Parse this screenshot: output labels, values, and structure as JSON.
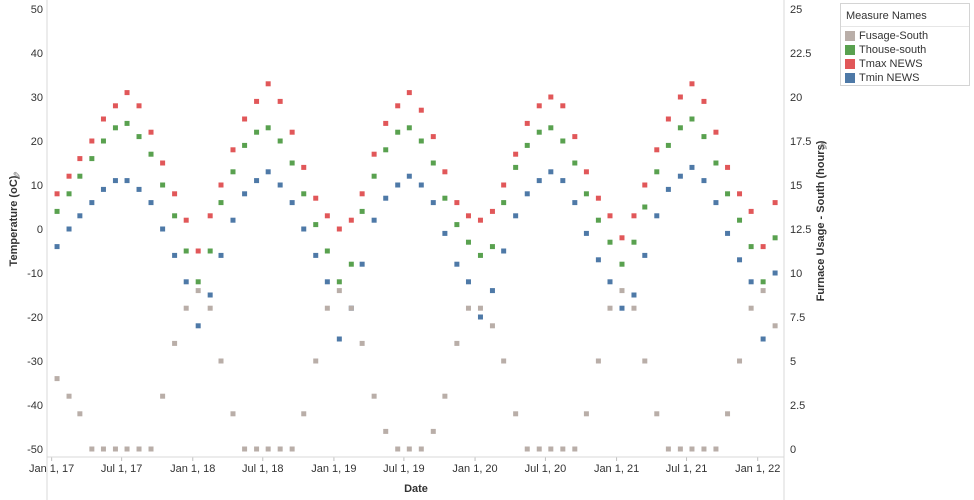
{
  "legend": {
    "title": "Measure Names",
    "items": [
      {
        "label": "Fusage-South",
        "color": "#b9aea8"
      },
      {
        "label": "Thouse-south",
        "color": "#59a14f"
      },
      {
        "label": "Tmax NEWS",
        "color": "#e15759"
      },
      {
        "label": "Tmin NEWS",
        "color": "#4e79a7"
      }
    ]
  },
  "chart_data": {
    "type": "scatter",
    "xlabel": "Date",
    "ylabel_left": "Temperature (oC)",
    "ylabel_right": "Furnace Usage - South (hours)",
    "x_range": [
      "2016-12-20",
      "2022-03-10"
    ],
    "x_ticks": [
      {
        "label": "Jan 1, 17",
        "date": "2017-01-01"
      },
      {
        "label": "Jul 1, 17",
        "date": "2017-07-01"
      },
      {
        "label": "Jan 1, 18",
        "date": "2018-01-01"
      },
      {
        "label": "Jul 1, 18",
        "date": "2018-07-01"
      },
      {
        "label": "Jan 1, 19",
        "date": "2019-01-01"
      },
      {
        "label": "Jul 1, 19",
        "date": "2019-07-01"
      },
      {
        "label": "Jan 1, 20",
        "date": "2020-01-01"
      },
      {
        "label": "Jul 1, 20",
        "date": "2020-07-01"
      },
      {
        "label": "Jan 1, 21",
        "date": "2021-01-01"
      },
      {
        "label": "Jul 1, 21",
        "date": "2021-07-01"
      },
      {
        "label": "Jan 1, 22",
        "date": "2022-01-01"
      }
    ],
    "y_left": {
      "range": [
        -50,
        50
      ],
      "ticks": [
        50,
        40,
        30,
        20,
        10,
        0,
        -10,
        -20,
        -30,
        -40,
        -50
      ]
    },
    "y_right": {
      "range": [
        0,
        25
      ],
      "ticks": [
        "25",
        "22.5",
        "20",
        "17.5",
        "15",
        "12.5",
        "10",
        "7.5",
        "5",
        "2.5",
        "0"
      ]
    },
    "grid": false,
    "legend_position": "top-right",
    "series": [
      {
        "name": "Tmax NEWS",
        "axis": "left",
        "points": [
          [
            "2017-01-15",
            8
          ],
          [
            "2017-02-15",
            12
          ],
          [
            "2017-03-15",
            16
          ],
          [
            "2017-04-15",
            20
          ],
          [
            "2017-05-15",
            25
          ],
          [
            "2017-06-15",
            28
          ],
          [
            "2017-07-15",
            31
          ],
          [
            "2017-08-15",
            28
          ],
          [
            "2017-09-15",
            22
          ],
          [
            "2017-10-15",
            15
          ],
          [
            "2017-11-15",
            8
          ],
          [
            "2017-12-15",
            2
          ],
          [
            "2018-01-15",
            -5
          ],
          [
            "2018-02-15",
            3
          ],
          [
            "2018-03-15",
            10
          ],
          [
            "2018-04-15",
            18
          ],
          [
            "2018-05-15",
            25
          ],
          [
            "2018-06-15",
            29
          ],
          [
            "2018-07-15",
            33
          ],
          [
            "2018-08-15",
            29
          ],
          [
            "2018-09-15",
            22
          ],
          [
            "2018-10-15",
            14
          ],
          [
            "2018-11-15",
            7
          ],
          [
            "2018-12-15",
            3
          ],
          [
            "2019-01-15",
            0
          ],
          [
            "2019-02-15",
            2
          ],
          [
            "2019-03-15",
            8
          ],
          [
            "2019-04-15",
            17
          ],
          [
            "2019-05-15",
            24
          ],
          [
            "2019-06-15",
            28
          ],
          [
            "2019-07-15",
            31
          ],
          [
            "2019-08-15",
            27
          ],
          [
            "2019-09-15",
            21
          ],
          [
            "2019-10-15",
            13
          ],
          [
            "2019-11-15",
            6
          ],
          [
            "2019-12-15",
            3
          ],
          [
            "2020-01-15",
            2
          ],
          [
            "2020-02-15",
            4
          ],
          [
            "2020-03-15",
            10
          ],
          [
            "2020-04-15",
            17
          ],
          [
            "2020-05-15",
            24
          ],
          [
            "2020-06-15",
            28
          ],
          [
            "2020-07-15",
            30
          ],
          [
            "2020-08-15",
            28
          ],
          [
            "2020-09-15",
            21
          ],
          [
            "2020-10-15",
            13
          ],
          [
            "2020-11-15",
            7
          ],
          [
            "2020-12-15",
            3
          ],
          [
            "2021-01-15",
            -2
          ],
          [
            "2021-02-15",
            3
          ],
          [
            "2021-03-15",
            10
          ],
          [
            "2021-04-15",
            18
          ],
          [
            "2021-05-15",
            25
          ],
          [
            "2021-06-15",
            30
          ],
          [
            "2021-07-15",
            33
          ],
          [
            "2021-08-15",
            29
          ],
          [
            "2021-09-15",
            22
          ],
          [
            "2021-10-15",
            14
          ],
          [
            "2021-11-15",
            8
          ],
          [
            "2021-12-15",
            4
          ],
          [
            "2022-01-15",
            -4
          ],
          [
            "2022-02-15",
            6
          ]
        ]
      },
      {
        "name": "Thouse-south",
        "axis": "left",
        "points": [
          [
            "2017-01-15",
            4
          ],
          [
            "2017-02-15",
            8
          ],
          [
            "2017-03-15",
            12
          ],
          [
            "2017-04-15",
            16
          ],
          [
            "2017-05-15",
            20
          ],
          [
            "2017-06-15",
            23
          ],
          [
            "2017-07-15",
            24
          ],
          [
            "2017-08-15",
            21
          ],
          [
            "2017-09-15",
            17
          ],
          [
            "2017-10-15",
            10
          ],
          [
            "2017-11-15",
            3
          ],
          [
            "2017-12-15",
            -5
          ],
          [
            "2018-01-15",
            -12
          ],
          [
            "2018-02-15",
            -5
          ],
          [
            "2018-03-15",
            6
          ],
          [
            "2018-04-15",
            13
          ],
          [
            "2018-05-15",
            19
          ],
          [
            "2018-06-15",
            22
          ],
          [
            "2018-07-15",
            23
          ],
          [
            "2018-08-15",
            20
          ],
          [
            "2018-09-15",
            15
          ],
          [
            "2018-10-15",
            8
          ],
          [
            "2018-11-15",
            1
          ],
          [
            "2018-12-15",
            -5
          ],
          [
            "2019-01-15",
            -12
          ],
          [
            "2019-02-15",
            -8
          ],
          [
            "2019-03-15",
            4
          ],
          [
            "2019-04-15",
            12
          ],
          [
            "2019-05-15",
            18
          ],
          [
            "2019-06-15",
            22
          ],
          [
            "2019-07-15",
            23
          ],
          [
            "2019-08-15",
            20
          ],
          [
            "2019-09-15",
            15
          ],
          [
            "2019-10-15",
            7
          ],
          [
            "2019-11-15",
            1
          ],
          [
            "2019-12-15",
            -3
          ],
          [
            "2020-01-15",
            -6
          ],
          [
            "2020-02-15",
            -4
          ],
          [
            "2020-03-15",
            6
          ],
          [
            "2020-04-15",
            14
          ],
          [
            "2020-05-15",
            19
          ],
          [
            "2020-06-15",
            22
          ],
          [
            "2020-07-15",
            23
          ],
          [
            "2020-08-15",
            20
          ],
          [
            "2020-09-15",
            15
          ],
          [
            "2020-10-15",
            8
          ],
          [
            "2020-11-15",
            2
          ],
          [
            "2020-12-15",
            -3
          ],
          [
            "2021-01-15",
            -8
          ],
          [
            "2021-02-15",
            -3
          ],
          [
            "2021-03-15",
            5
          ],
          [
            "2021-04-15",
            13
          ],
          [
            "2021-05-15",
            19
          ],
          [
            "2021-06-15",
            23
          ],
          [
            "2021-07-15",
            25
          ],
          [
            "2021-08-15",
            21
          ],
          [
            "2021-09-15",
            15
          ],
          [
            "2021-10-15",
            8
          ],
          [
            "2021-11-15",
            2
          ],
          [
            "2021-12-15",
            -4
          ],
          [
            "2022-01-15",
            -12
          ],
          [
            "2022-02-15",
            -2
          ]
        ]
      },
      {
        "name": "Tmin NEWS",
        "axis": "left",
        "points": [
          [
            "2017-01-15",
            -4
          ],
          [
            "2017-02-15",
            0
          ],
          [
            "2017-03-15",
            3
          ],
          [
            "2017-04-15",
            6
          ],
          [
            "2017-05-15",
            9
          ],
          [
            "2017-06-15",
            11
          ],
          [
            "2017-07-15",
            11
          ],
          [
            "2017-08-15",
            9
          ],
          [
            "2017-09-15",
            6
          ],
          [
            "2017-10-15",
            0
          ],
          [
            "2017-11-15",
            -6
          ],
          [
            "2017-12-15",
            -12
          ],
          [
            "2018-01-15",
            -22
          ],
          [
            "2018-02-15",
            -15
          ],
          [
            "2018-03-15",
            -6
          ],
          [
            "2018-04-15",
            2
          ],
          [
            "2018-05-15",
            8
          ],
          [
            "2018-06-15",
            11
          ],
          [
            "2018-07-15",
            13
          ],
          [
            "2018-08-15",
            10
          ],
          [
            "2018-09-15",
            6
          ],
          [
            "2018-10-15",
            0
          ],
          [
            "2018-11-15",
            -6
          ],
          [
            "2018-12-15",
            -12
          ],
          [
            "2019-01-15",
            -25
          ],
          [
            "2019-02-15",
            -18
          ],
          [
            "2019-03-15",
            -8
          ],
          [
            "2019-04-15",
            2
          ],
          [
            "2019-05-15",
            7
          ],
          [
            "2019-06-15",
            10
          ],
          [
            "2019-07-15",
            12
          ],
          [
            "2019-08-15",
            10
          ],
          [
            "2019-09-15",
            6
          ],
          [
            "2019-10-15",
            -1
          ],
          [
            "2019-11-15",
            -8
          ],
          [
            "2019-12-15",
            -12
          ],
          [
            "2020-01-15",
            -20
          ],
          [
            "2020-02-15",
            -14
          ],
          [
            "2020-03-15",
            -5
          ],
          [
            "2020-04-15",
            3
          ],
          [
            "2020-05-15",
            8
          ],
          [
            "2020-06-15",
            11
          ],
          [
            "2020-07-15",
            13
          ],
          [
            "2020-08-15",
            11
          ],
          [
            "2020-09-15",
            6
          ],
          [
            "2020-10-15",
            -1
          ],
          [
            "2020-11-15",
            -7
          ],
          [
            "2020-12-15",
            -12
          ],
          [
            "2021-01-15",
            -18
          ],
          [
            "2021-02-15",
            -15
          ],
          [
            "2021-03-15",
            -6
          ],
          [
            "2021-04-15",
            3
          ],
          [
            "2021-05-15",
            9
          ],
          [
            "2021-06-15",
            12
          ],
          [
            "2021-07-15",
            14
          ],
          [
            "2021-08-15",
            11
          ],
          [
            "2021-09-15",
            6
          ],
          [
            "2021-10-15",
            -1
          ],
          [
            "2021-11-15",
            -7
          ],
          [
            "2021-12-15",
            -12
          ],
          [
            "2022-01-15",
            -25
          ],
          [
            "2022-02-15",
            -10
          ]
        ]
      },
      {
        "name": "Fusage-South",
        "axis": "right",
        "points": [
          [
            "2017-01-15",
            4
          ],
          [
            "2017-02-15",
            3
          ],
          [
            "2017-03-15",
            2
          ],
          [
            "2017-04-15",
            0
          ],
          [
            "2017-05-15",
            0
          ],
          [
            "2017-06-15",
            0
          ],
          [
            "2017-07-15",
            0
          ],
          [
            "2017-08-15",
            0
          ],
          [
            "2017-09-15",
            0
          ],
          [
            "2017-10-15",
            3
          ],
          [
            "2017-11-15",
            6
          ],
          [
            "2017-12-15",
            8
          ],
          [
            "2018-01-15",
            9
          ],
          [
            "2018-02-15",
            8
          ],
          [
            "2018-03-15",
            5
          ],
          [
            "2018-04-15",
            2
          ],
          [
            "2018-05-15",
            0
          ],
          [
            "2018-06-15",
            0
          ],
          [
            "2018-07-15",
            0
          ],
          [
            "2018-08-15",
            0
          ],
          [
            "2018-09-15",
            0
          ],
          [
            "2018-10-15",
            2
          ],
          [
            "2018-11-15",
            5
          ],
          [
            "2018-12-15",
            8
          ],
          [
            "2019-01-15",
            9
          ],
          [
            "2019-02-15",
            8
          ],
          [
            "2019-03-15",
            6
          ],
          [
            "2019-04-15",
            3
          ],
          [
            "2019-05-15",
            1
          ],
          [
            "2019-06-15",
            0
          ],
          [
            "2019-07-15",
            0
          ],
          [
            "2019-08-15",
            0
          ],
          [
            "2019-09-15",
            1
          ],
          [
            "2019-10-15",
            3
          ],
          [
            "2019-11-15",
            6
          ],
          [
            "2019-12-15",
            8
          ],
          [
            "2020-01-15",
            8
          ],
          [
            "2020-02-15",
            7
          ],
          [
            "2020-03-15",
            5
          ],
          [
            "2020-04-15",
            2
          ],
          [
            "2020-05-15",
            0
          ],
          [
            "2020-06-15",
            0
          ],
          [
            "2020-07-15",
            0
          ],
          [
            "2020-08-15",
            0
          ],
          [
            "2020-09-15",
            0
          ],
          [
            "2020-10-15",
            2
          ],
          [
            "2020-11-15",
            5
          ],
          [
            "2020-12-15",
            8
          ],
          [
            "2021-01-15",
            9
          ],
          [
            "2021-02-15",
            8
          ],
          [
            "2021-03-15",
            5
          ],
          [
            "2021-04-15",
            2
          ],
          [
            "2021-05-15",
            0
          ],
          [
            "2021-06-15",
            0
          ],
          [
            "2021-07-15",
            0
          ],
          [
            "2021-08-15",
            0
          ],
          [
            "2021-09-15",
            0
          ],
          [
            "2021-10-15",
            2
          ],
          [
            "2021-11-15",
            5
          ],
          [
            "2021-12-15",
            8
          ],
          [
            "2022-01-15",
            9
          ],
          [
            "2022-02-15",
            7
          ]
        ]
      }
    ]
  }
}
